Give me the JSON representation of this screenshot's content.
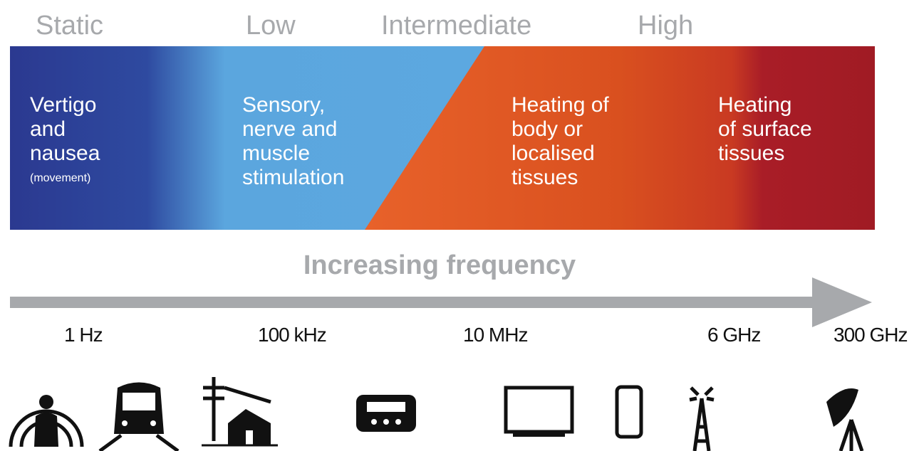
{
  "bands": [
    "Static",
    "Low",
    "Intermediate",
    "High"
  ],
  "effects": [
    {
      "lines": [
        "Vertigo",
        "and",
        "nausea"
      ],
      "note": "(movement)"
    },
    {
      "lines": [
        "Sensory,",
        "nerve and",
        "muscle",
        "stimulation"
      ]
    },
    {
      "lines": [
        "Heating of",
        "body or",
        "localised",
        "tissues"
      ]
    },
    {
      "lines": [
        "Heating",
        "of surface",
        "tissues"
      ]
    }
  ],
  "axis_label": "Increasing frequency",
  "frequencies": [
    "1 Hz",
    "100 kHz",
    "10 MHz",
    "6 GHz",
    "300 GHz"
  ]
}
